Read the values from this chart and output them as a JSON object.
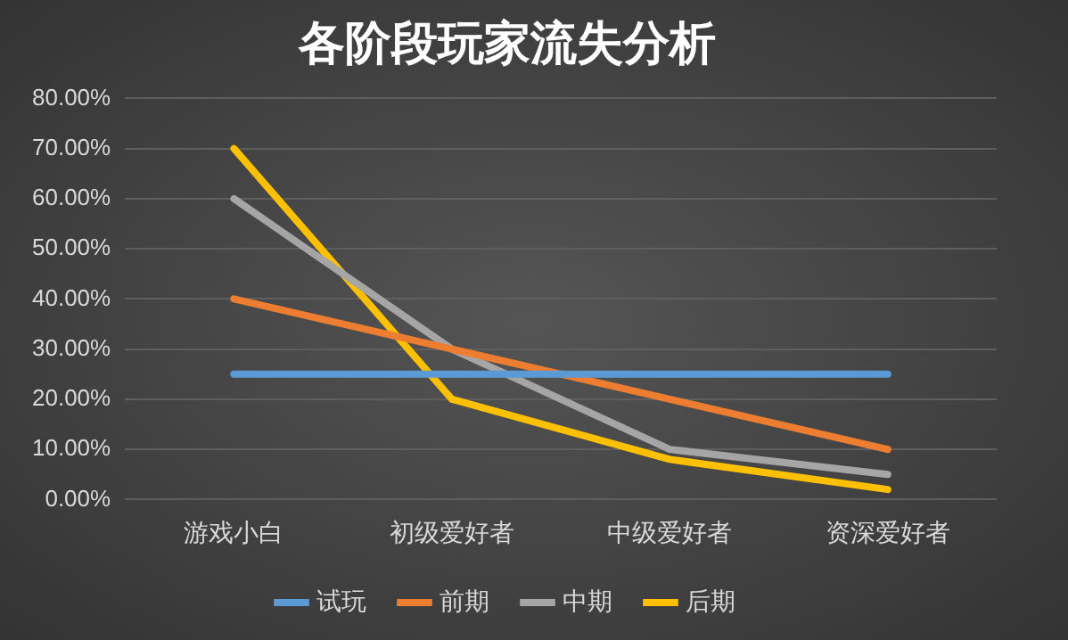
{
  "chart_data": {
    "type": "line",
    "title": "各阶段玩家流失分析",
    "categories": [
      "游戏小白",
      "初级爱好者",
      "中级爱好者",
      "资深爱好者"
    ],
    "series": [
      {
        "name": "试玩",
        "color": "#5b9bd5",
        "values": [
          25,
          25,
          25,
          25
        ]
      },
      {
        "name": "前期",
        "color": "#ed7d31",
        "values": [
          40,
          30,
          20,
          10
        ]
      },
      {
        "name": "中期",
        "color": "#a5a5a5",
        "values": [
          60,
          30,
          10,
          5
        ]
      },
      {
        "name": "后期",
        "color": "#ffc000",
        "values": [
          70,
          20,
          8,
          2
        ]
      }
    ],
    "ylim": [
      0,
      80
    ],
    "yticks": [
      {
        "value": 0,
        "label": "0.00%"
      },
      {
        "value": 10,
        "label": "10.00%"
      },
      {
        "value": 20,
        "label": "20.00%"
      },
      {
        "value": 30,
        "label": "30.00%"
      },
      {
        "value": 40,
        "label": "40.00%"
      },
      {
        "value": 50,
        "label": "50.00%"
      },
      {
        "value": 60,
        "label": "60.00%"
      },
      {
        "value": 70,
        "label": "70.00%"
      },
      {
        "value": 80,
        "label": "80.00%"
      }
    ],
    "grid": "y",
    "legend": "bottom",
    "marker": "none",
    "line_style": "solid"
  }
}
